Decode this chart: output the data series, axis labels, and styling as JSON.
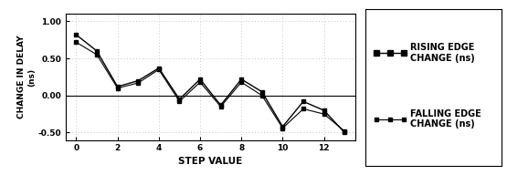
{
  "x_values": [
    0,
    1,
    2,
    3,
    4,
    5,
    6,
    7,
    8,
    9,
    10,
    11,
    12,
    13
  ],
  "rising_edge": [
    0.82,
    0.6,
    0.12,
    0.2,
    0.37,
    -0.05,
    0.22,
    -0.13,
    0.22,
    0.05,
    -0.42,
    -0.08,
    -0.2,
    -0.5
  ],
  "falling_edge": [
    0.72,
    0.55,
    0.1,
    0.17,
    0.35,
    -0.08,
    0.18,
    -0.15,
    0.18,
    0.0,
    -0.44,
    -0.18,
    -0.25,
    -0.48
  ],
  "x_tick_positions": [
    0,
    2,
    4,
    6,
    8,
    10,
    12
  ],
  "x_tick_labels": [
    "0",
    "2",
    "4",
    "6",
    "8",
    "10",
    "12"
  ],
  "ylim": [
    -0.6,
    1.1
  ],
  "yticks": [
    -0.5,
    0.0,
    0.5,
    1.0
  ],
  "ytick_labels": [
    "-0.50",
    "0.00",
    "0.50",
    "1.00"
  ],
  "ylabel_line1": "CHANGE IN DELAY",
  "ylabel_line2": "(ns)",
  "xlabel": "STEP VALUE",
  "legend_labels": [
    "RISING EDGE\nCHANGE (ns)",
    "FALLING EDGE\nCHANGE (ns)"
  ],
  "line_color": "#000000",
  "bg_color": "#ffffff",
  "dot_color": "#000000",
  "grid_color": "#aaaaaa",
  "axis_fontsize": 6.5,
  "label_fontsize": 7.5,
  "legend_fontsize": 7
}
